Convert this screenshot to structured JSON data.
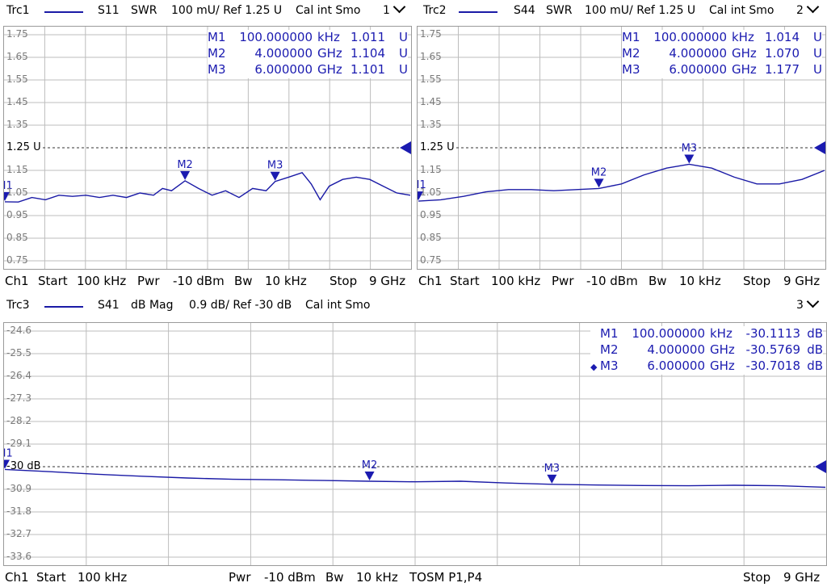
{
  "colors": {
    "trace": "#1a1aa6",
    "marker": "#1b1bb0",
    "grid": "#bdbdbd",
    "reference": "#333333"
  },
  "trc1": {
    "name": "Trc1",
    "param": "S11",
    "format": "SWR",
    "scale": "100 mU/ Ref 1.25 U",
    "cal": "Cal int Smo",
    "channel_tag": "1",
    "y_ticks": [
      "1.75",
      "1.65",
      "1.55",
      "1.45",
      "1.35",
      "1.25 U",
      "1.15",
      "1.05",
      "0.95",
      "0.85",
      "0.75"
    ],
    "ref_label": "1.25 U",
    "markers": [
      {
        "name": "M1",
        "freq": "100.000000",
        "funit": "kHz",
        "value": "1.011",
        "vunit": "U"
      },
      {
        "name": "M2",
        "freq": "4.000000",
        "funit": "GHz",
        "value": "1.104",
        "vunit": "U"
      },
      {
        "name": "M3",
        "freq": "6.000000",
        "funit": "GHz",
        "value": "1.101",
        "vunit": "U"
      }
    ],
    "footer": {
      "ch": "Ch1",
      "start_label": "Start",
      "start": "100 kHz",
      "pwr_label": "Pwr",
      "pwr": "-10 dBm",
      "bw_label": "Bw",
      "bw": "10 kHz",
      "stop_label": "Stop",
      "stop": "9 GHz"
    }
  },
  "trc2": {
    "name": "Trc2",
    "param": "S44",
    "format": "SWR",
    "scale": "100 mU/ Ref 1.25 U",
    "cal": "Cal int Smo",
    "channel_tag": "2",
    "y_ticks": [
      "1.75",
      "1.65",
      "1.55",
      "1.45",
      "1.35",
      "1.25 U",
      "1.15",
      "1.05",
      "0.95",
      "0.85",
      "0.75"
    ],
    "ref_label": "1.25 U",
    "markers": [
      {
        "name": "M1",
        "freq": "100.000000",
        "funit": "kHz",
        "value": "1.014",
        "vunit": "U"
      },
      {
        "name": "M2",
        "freq": "4.000000",
        "funit": "GHz",
        "value": "1.070",
        "vunit": "U"
      },
      {
        "name": "M3",
        "freq": "6.000000",
        "funit": "GHz",
        "value": "1.177",
        "vunit": "U"
      }
    ],
    "footer": {
      "ch": "Ch1",
      "start_label": "Start",
      "start": "100 kHz",
      "pwr_label": "Pwr",
      "pwr": "-10 dBm",
      "bw_label": "Bw",
      "bw": "10 kHz",
      "stop_label": "Stop",
      "stop": "9 GHz"
    }
  },
  "trc3": {
    "name": "Trc3",
    "param": "S41",
    "format": "dB Mag",
    "scale": "0.9 dB/ Ref -30 dB",
    "cal": "Cal int Smo",
    "channel_tag": "3",
    "y_ticks": [
      "-24.6",
      "-25.5",
      "-26.4",
      "-27.3",
      "-28.2",
      "-29.1",
      "-30 dB",
      "-30.9",
      "-31.8",
      "-32.7",
      "-33.6"
    ],
    "ref_label": "-30 dB",
    "active_marker_symbol": "◆",
    "markers": [
      {
        "name": "M1",
        "freq": "100.000000",
        "funit": "kHz",
        "value": "-30.1113",
        "vunit": "dB"
      },
      {
        "name": "M2",
        "freq": "4.000000",
        "funit": "GHz",
        "value": "-30.5769",
        "vunit": "dB"
      },
      {
        "name": "M3",
        "freq": "6.000000",
        "funit": "GHz",
        "value": "-30.7018",
        "vunit": "dB"
      }
    ],
    "footer": {
      "ch": "Ch1",
      "start_label": "Start",
      "start": "100 kHz",
      "pwr_label": "Pwr",
      "pwr": "-10 dBm",
      "bw_label": "Bw",
      "bw": "10 kHz",
      "cal_info": "TOSM P1,P4",
      "stop_label": "Stop",
      "stop": "9 GHz"
    }
  },
  "chart_data": [
    {
      "type": "line",
      "title": "Trc1 S11 SWR",
      "xlabel": "",
      "ylabel": "",
      "x_unit": "GHz",
      "xlim": [
        0.0001,
        9
      ],
      "ylim": [
        0.75,
        1.75
      ],
      "reference": 1.25,
      "grid": true,
      "series": [
        {
          "name": "S11",
          "x": [
            0.0001,
            0.3,
            0.6,
            0.9,
            1.2,
            1.5,
            1.8,
            2.1,
            2.4,
            2.7,
            3.0,
            3.3,
            3.5,
            3.7,
            4.0,
            4.3,
            4.6,
            4.9,
            5.2,
            5.5,
            5.8,
            6.0,
            6.3,
            6.6,
            6.8,
            7.0,
            7.2,
            7.5,
            7.8,
            8.1,
            8.4,
            8.7,
            9.0
          ],
          "y": [
            1.011,
            1.01,
            1.03,
            1.02,
            1.04,
            1.035,
            1.04,
            1.03,
            1.04,
            1.03,
            1.05,
            1.04,
            1.07,
            1.06,
            1.104,
            1.07,
            1.04,
            1.06,
            1.03,
            1.07,
            1.06,
            1.101,
            1.12,
            1.14,
            1.09,
            1.02,
            1.08,
            1.11,
            1.12,
            1.11,
            1.08,
            1.05,
            1.04
          ]
        }
      ],
      "markers": [
        {
          "name": "M1",
          "x": 0.0001,
          "y": 1.011
        },
        {
          "name": "M2",
          "x": 4.0,
          "y": 1.104
        },
        {
          "name": "M3",
          "x": 6.0,
          "y": 1.101
        }
      ]
    },
    {
      "type": "line",
      "title": "Trc2 S44 SWR",
      "xlabel": "",
      "ylabel": "",
      "x_unit": "GHz",
      "xlim": [
        0.0001,
        9
      ],
      "ylim": [
        0.75,
        1.75
      ],
      "reference": 1.25,
      "grid": true,
      "series": [
        {
          "name": "S44",
          "x": [
            0.0001,
            0.5,
            1.0,
            1.5,
            2.0,
            2.5,
            3.0,
            3.5,
            4.0,
            4.5,
            5.0,
            5.5,
            6.0,
            6.5,
            7.0,
            7.5,
            8.0,
            8.5,
            9.0
          ],
          "y": [
            1.014,
            1.02,
            1.035,
            1.055,
            1.065,
            1.065,
            1.06,
            1.065,
            1.07,
            1.09,
            1.13,
            1.16,
            1.177,
            1.16,
            1.12,
            1.09,
            1.09,
            1.11,
            1.15
          ]
        }
      ],
      "markers": [
        {
          "name": "M1",
          "x": 0.0001,
          "y": 1.014
        },
        {
          "name": "M2",
          "x": 4.0,
          "y": 1.07
        },
        {
          "name": "M3",
          "x": 6.0,
          "y": 1.177
        }
      ]
    },
    {
      "type": "line",
      "title": "Trc3 S41 dB Mag",
      "xlabel": "",
      "ylabel": "",
      "x_unit": "GHz",
      "xlim": [
        0.0001,
        9
      ],
      "ylim": [
        -33.6,
        -24.6
      ],
      "reference": -30,
      "grid": true,
      "series": [
        {
          "name": "S41",
          "x": [
            0.0001,
            0.5,
            1.0,
            1.5,
            2.0,
            2.5,
            3.0,
            3.5,
            4.0,
            4.5,
            5.0,
            5.5,
            6.0,
            6.5,
            7.0,
            7.5,
            8.0,
            8.5,
            9.0
          ],
          "y": [
            -30.11,
            -30.2,
            -30.3,
            -30.38,
            -30.45,
            -30.5,
            -30.52,
            -30.55,
            -30.58,
            -30.6,
            -30.58,
            -30.65,
            -30.7,
            -30.73,
            -30.75,
            -30.76,
            -30.74,
            -30.76,
            -30.82
          ]
        }
      ],
      "markers": [
        {
          "name": "M1",
          "x": 0.0001,
          "y": -30.1113
        },
        {
          "name": "M2",
          "x": 4.0,
          "y": -30.5769
        },
        {
          "name": "M3",
          "x": 6.0,
          "y": -30.7018
        }
      ]
    }
  ]
}
